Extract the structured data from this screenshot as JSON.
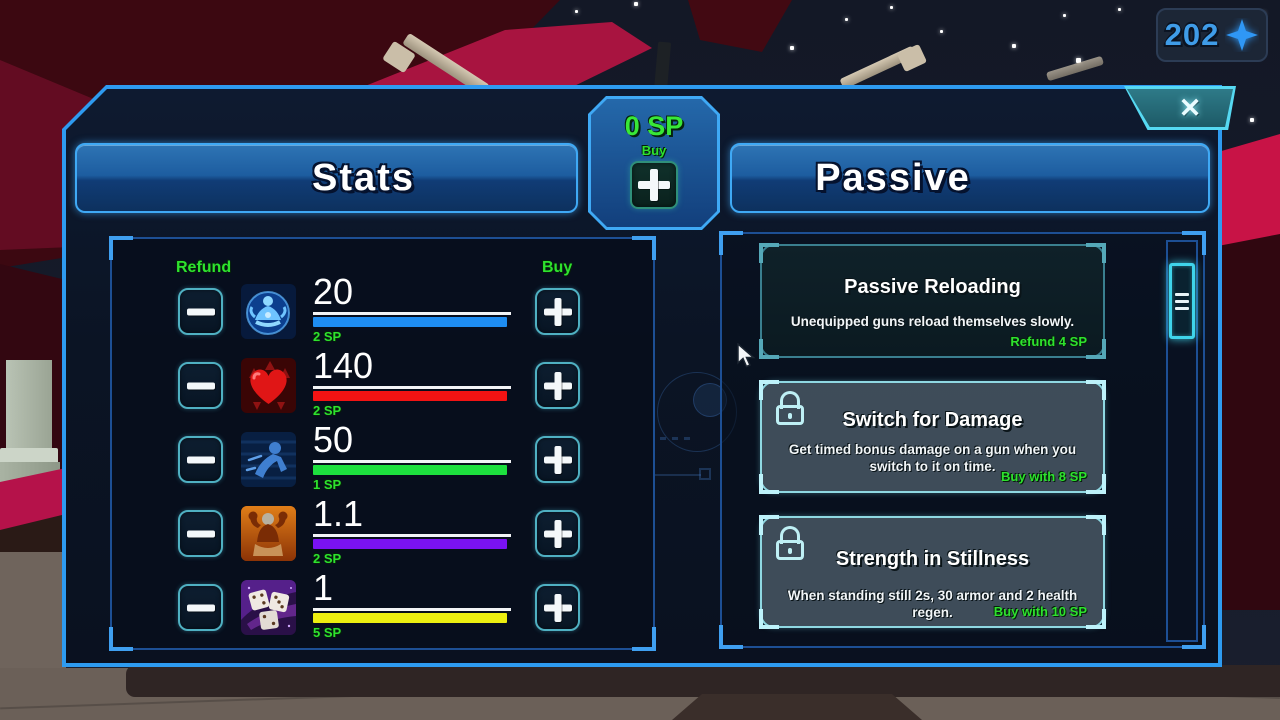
{
  "hud": {
    "score": "202",
    "score_icon": "four-point-star"
  },
  "close": {
    "label": "✕"
  },
  "sp_box": {
    "points": "0 SP",
    "buy_label": "Buy",
    "plus_icon": "plus"
  },
  "stats": {
    "title": "Stats",
    "refund_label": "Refund",
    "buy_label": "Buy",
    "rows": [
      {
        "icon": "meditation-regen",
        "value": "20",
        "cost": "2 SP",
        "bar_color": "#1e8df2"
      },
      {
        "icon": "health-heart",
        "value": "140",
        "cost": "2 SP",
        "bar_color": "#f21313"
      },
      {
        "icon": "speed-runner",
        "value": "50",
        "cost": "1 SP",
        "bar_color": "#1de03e"
      },
      {
        "icon": "strength-flex",
        "value": "1.1",
        "cost": "2 SP",
        "bar_color": "#7a12f2"
      },
      {
        "icon": "luck-dice",
        "value": "1",
        "cost": "5 SP",
        "bar_color": "#ecee10"
      }
    ]
  },
  "passive": {
    "title": "Passive",
    "cards": [
      {
        "title": "Passive Reloading",
        "description": "Unequipped guns reload themselves slowly.",
        "action": "Refund 4 SP",
        "locked": false
      },
      {
        "title": "Switch for Damage",
        "description": "Get timed bonus damage on a gun when you switch to it on time.",
        "action": "Buy with 8 SP",
        "locked": true
      },
      {
        "title": "Strength in Stillness",
        "description": "When standing still 2s, 30 armor and 2 health regen.",
        "action": "Buy with 10 SP",
        "locked": true
      }
    ]
  },
  "colors": {
    "accent_green": "#2ee22e",
    "border_blue": "#2e9bf0",
    "bracket_cyan": "#3fd4ea",
    "header_blue": "#1d5da0"
  }
}
